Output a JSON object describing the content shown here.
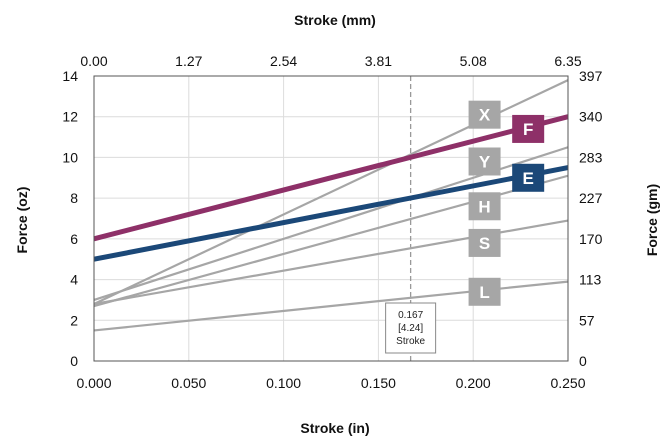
{
  "chart_data": {
    "type": "line",
    "top_axis_title": "Stroke (mm)",
    "xlabel": "Stroke (in)",
    "ylabel_left": "Force (oz)",
    "ylabel_right": "Force (gm)",
    "xlim": [
      0,
      0.25
    ],
    "ylim": [
      0,
      14
    ],
    "grid": true,
    "x_ticks": [
      "0.000",
      "0.050",
      "0.100",
      "0.150",
      "0.200",
      "0.250"
    ],
    "y_ticks_left": [
      "0",
      "2",
      "4",
      "6",
      "8",
      "10",
      "12",
      "14"
    ],
    "top_ticks": [
      "0.00",
      "1.27",
      "2.54",
      "3.81",
      "5.08",
      "6.35"
    ],
    "right_ticks": [
      "0",
      "57",
      "113",
      "170",
      "227",
      "283",
      "340",
      "397"
    ],
    "series": [
      {
        "name": "X",
        "x": [
          0,
          0.25
        ],
        "y": [
          2.8,
          13.8
        ],
        "color": "#a6a6a6",
        "highlight": false,
        "label_x": 0.206,
        "label_y": 12.1
      },
      {
        "name": "Y",
        "x": [
          0,
          0.25
        ],
        "y": [
          3.0,
          10.5
        ],
        "color": "#a6a6a6",
        "highlight": false,
        "label_x": 0.206,
        "label_y": 9.8
      },
      {
        "name": "H",
        "x": [
          0,
          0.25
        ],
        "y": [
          2.7,
          9.1
        ],
        "color": "#a6a6a6",
        "highlight": false,
        "label_x": 0.206,
        "label_y": 7.6
      },
      {
        "name": "S",
        "x": [
          0,
          0.25
        ],
        "y": [
          2.8,
          6.9
        ],
        "color": "#a6a6a6",
        "highlight": false,
        "label_x": 0.206,
        "label_y": 5.8
      },
      {
        "name": "L",
        "x": [
          0,
          0.25
        ],
        "y": [
          1.5,
          3.9
        ],
        "color": "#a6a6a6",
        "highlight": false,
        "label_x": 0.206,
        "label_y": 3.4
      },
      {
        "name": "F",
        "x": [
          0,
          0.25
        ],
        "y": [
          6.0,
          12.0
        ],
        "color": "#8e3068",
        "highlight": true,
        "label_x": 0.229,
        "label_y": 11.4
      },
      {
        "name": "E",
        "x": [
          0,
          0.25
        ],
        "y": [
          5.0,
          9.5
        ],
        "color": "#1b4878",
        "highlight": true,
        "label_x": 0.229,
        "label_y": 9.0
      }
    ],
    "reference_line": {
      "x": 0.167,
      "color": "#999999",
      "label_lines": [
        "0.167",
        "[4.24]",
        "Stroke"
      ]
    }
  }
}
